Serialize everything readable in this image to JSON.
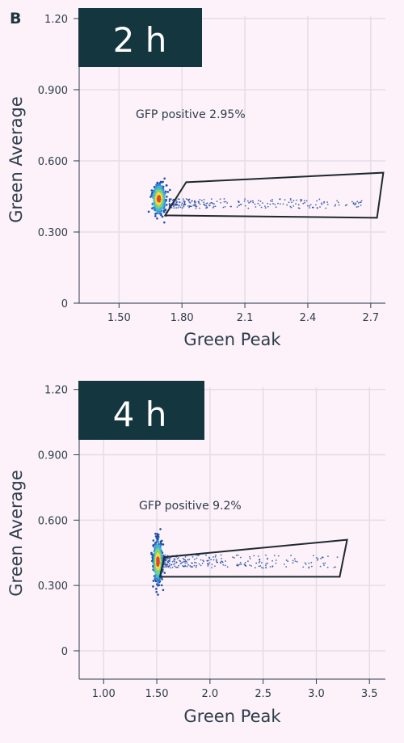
{
  "panel_label": "B",
  "chart_data": [
    {
      "type": "scatter",
      "title": "2 h",
      "xlabel": "Green Peak",
      "ylabel": "Green Average",
      "xticks": [
        "1.50",
        "1.80",
        "2.1",
        "2.4",
        "2.7"
      ],
      "xtick_values": [
        1.5,
        1.8,
        2.1,
        2.4,
        2.7
      ],
      "yticks": [
        "0",
        "0.300",
        "0.600",
        "0.900",
        "1.20"
      ],
      "ytick_values": [
        0,
        0.3,
        0.6,
        0.9,
        1.2
      ],
      "xlim": [
        1.31,
        2.77
      ],
      "ylim": [
        0,
        1.21
      ],
      "grid": true,
      "annotation": "GFP positive 2.95%",
      "gate": [
        [
          1.72,
          0.37
        ],
        [
          1.82,
          0.51
        ],
        [
          2.76,
          0.55
        ],
        [
          2.73,
          0.36
        ]
      ],
      "cluster": {
        "center": [
          1.69,
          0.44
        ],
        "sd": [
          0.015,
          0.03
        ],
        "density_colors": [
          "#1d4fa8",
          "#2f7fd6",
          "#3fb7cf",
          "#7dd37a",
          "#f3dc3c",
          "#e2462c"
        ]
      },
      "tail": {
        "x_range": [
          1.74,
          2.66
        ],
        "y": [
          0.4,
          0.44
        ],
        "color": "#2450a8"
      }
    },
    {
      "type": "scatter",
      "title": "4 h",
      "xlabel": "Green Peak",
      "ylabel": "Green Average",
      "xticks": [
        "1.00",
        "1.50",
        "2.0",
        "2.5",
        "3.0",
        "3.5"
      ],
      "xtick_values": [
        1.0,
        1.5,
        2.0,
        2.5,
        3.0,
        3.5
      ],
      "yticks": [
        "0",
        "0.300",
        "0.600",
        "0.900",
        "1.20"
      ],
      "ytick_values": [
        0,
        0.3,
        0.6,
        0.9,
        1.2
      ],
      "xlim": [
        0.77,
        3.65
      ],
      "ylim": [
        -0.13,
        1.21
      ],
      "grid": true,
      "annotation": "GFP positive 9.2%",
      "gate": [
        [
          1.53,
          0.34
        ],
        [
          1.57,
          0.43
        ],
        [
          3.29,
          0.51
        ],
        [
          3.22,
          0.34
        ]
      ],
      "cluster": {
        "center": [
          1.51,
          0.41
        ],
        "sd": [
          0.02,
          0.045
        ],
        "density_colors": [
          "#1d4fa8",
          "#2f7fd6",
          "#3fb7cf",
          "#7dd37a",
          "#f3dc3c",
          "#e2462c"
        ]
      },
      "tail": {
        "x_range": [
          1.56,
          3.2
        ],
        "y": [
          0.38,
          0.44
        ],
        "color": "#2450a8"
      }
    }
  ],
  "colors": {
    "label_box": "#14363f",
    "grid": "#e4dce8",
    "axis": "#2d3d4b",
    "gate": "#1e2830"
  }
}
